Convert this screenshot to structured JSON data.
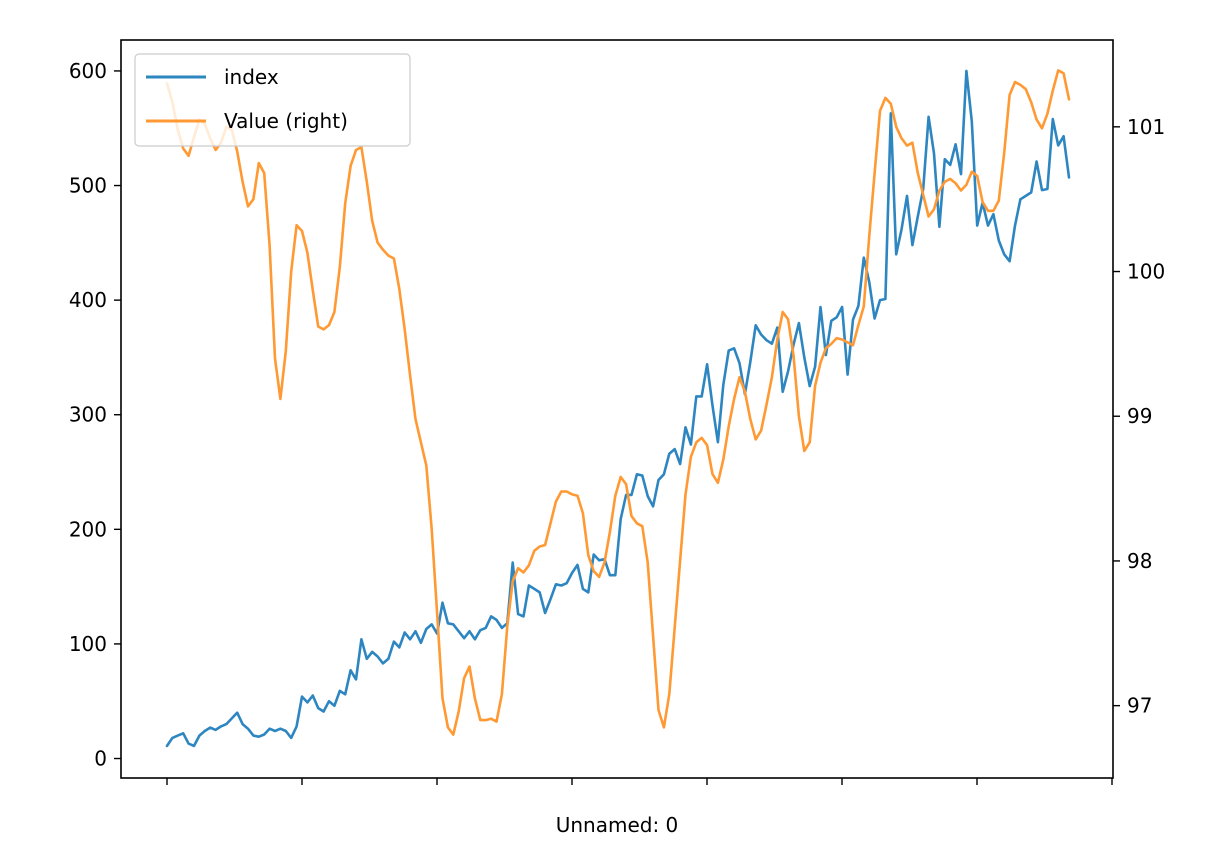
{
  "chart_data": {
    "type": "line",
    "title": "",
    "xlabel": "Unnamed: 0",
    "ylabel": "",
    "ylabel_right": "",
    "grid": false,
    "legend_position": "top-left",
    "x_tick_labels": [
      "",
      "",
      "",
      "",
      "",
      "",
      "",
      ""
    ],
    "yticks_left": [
      0,
      100,
      200,
      300,
      400,
      500,
      600
    ],
    "yticks_right": [
      97,
      98,
      99,
      100,
      101
    ],
    "ylim_left": [
      -17,
      627
    ],
    "ylim_right": [
      96.5,
      101.6
    ],
    "series": [
      {
        "name": "index",
        "axis": "left",
        "color": "#2e86c1",
        "values": [
          11,
          18,
          20,
          22,
          13,
          11,
          20,
          24,
          27,
          25,
          28,
          30,
          35,
          40,
          30,
          26,
          20,
          19,
          21,
          26,
          24,
          26,
          24,
          18,
          28,
          54,
          49,
          55,
          44,
          41,
          50,
          46,
          59,
          56,
          77,
          69,
          104,
          87,
          93,
          89,
          83,
          87,
          102,
          97,
          110,
          104,
          111,
          101,
          113,
          117,
          109,
          136,
          118,
          117,
          111,
          105,
          111,
          104,
          112,
          114,
          124,
          121,
          114,
          118,
          171,
          126,
          124,
          151,
          148,
          145,
          127,
          139,
          152,
          151,
          153,
          162,
          169,
          148,
          145,
          178,
          173,
          174,
          160,
          160,
          209,
          230,
          230,
          248,
          247,
          229,
          220,
          243,
          248,
          266,
          270,
          257,
          289,
          274,
          316,
          316,
          344,
          308,
          276,
          326,
          356,
          358,
          345,
          318,
          346,
          378,
          370,
          365,
          362,
          376,
          320,
          338,
          361,
          380,
          350,
          325,
          342,
          394,
          352,
          382,
          385,
          394,
          335,
          383,
          395,
          437,
          416,
          384,
          400,
          401,
          563,
          440,
          462,
          491,
          448,
          473,
          497,
          560,
          528,
          464,
          523,
          518,
          536,
          510,
          600,
          556,
          465,
          485,
          465,
          475,
          452,
          440,
          434,
          465,
          488,
          491,
          494,
          521,
          496,
          497,
          558,
          535,
          543,
          507
        ]
      },
      {
        "name": "Value (right)",
        "axis": "right",
        "color": "#ff9933",
        "values": [
          101.3,
          101.17,
          100.98,
          100.85,
          100.8,
          100.93,
          101.05,
          101.02,
          100.92,
          100.84,
          100.89,
          101.0,
          100.98,
          100.83,
          100.62,
          100.45,
          100.5,
          100.75,
          100.68,
          100.18,
          99.4,
          99.12,
          99.45,
          100.0,
          100.32,
          100.28,
          100.13,
          99.87,
          99.62,
          99.6,
          99.63,
          99.72,
          100.03,
          100.47,
          100.73,
          100.84,
          100.86,
          100.62,
          100.35,
          100.2,
          100.15,
          100.11,
          100.09,
          99.88,
          99.6,
          99.28,
          98.98,
          98.82,
          98.66,
          98.22,
          97.64,
          97.05,
          96.85,
          96.8,
          96.96,
          97.19,
          97.27,
          97.05,
          96.9,
          96.9,
          96.91,
          96.89,
          97.08,
          97.55,
          97.86,
          97.95,
          97.92,
          97.97,
          98.07,
          98.1,
          98.11,
          98.26,
          98.41,
          98.48,
          98.48,
          98.46,
          98.45,
          98.33,
          98.04,
          97.93,
          97.89,
          97.99,
          98.2,
          98.45,
          98.58,
          98.53,
          98.31,
          98.26,
          98.24,
          97.99,
          97.48,
          96.97,
          96.85,
          97.08,
          97.54,
          98.0,
          98.46,
          98.72,
          98.82,
          98.85,
          98.8,
          98.6,
          98.54,
          98.7,
          98.93,
          99.12,
          99.27,
          99.17,
          98.98,
          98.84,
          98.9,
          99.08,
          99.27,
          99.53,
          99.72,
          99.67,
          99.42,
          99.0,
          98.76,
          98.82,
          99.21,
          99.37,
          99.47,
          99.5,
          99.54,
          99.53,
          99.51,
          99.49,
          99.63,
          99.76,
          100.24,
          100.68,
          101.11,
          101.2,
          101.16,
          101.0,
          100.92,
          100.87,
          100.89,
          100.68,
          100.53,
          100.38,
          100.43,
          100.56,
          100.62,
          100.64,
          100.61,
          100.56,
          100.6,
          100.69,
          100.66,
          100.48,
          100.42,
          100.42,
          100.49,
          100.82,
          101.22,
          101.31,
          101.29,
          101.26,
          101.17,
          101.05,
          100.99,
          101.09,
          101.25,
          101.39,
          101.37,
          101.19
        ]
      }
    ]
  }
}
